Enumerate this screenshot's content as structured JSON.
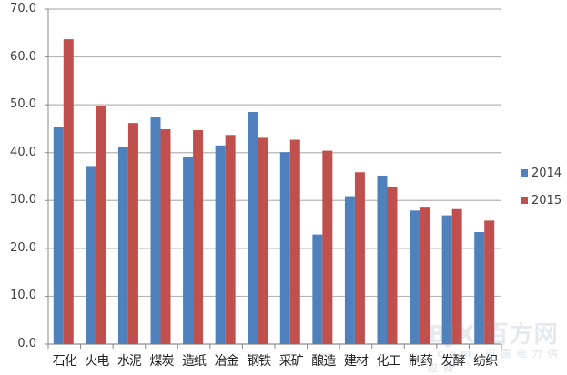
{
  "chart_data": {
    "type": "bar",
    "title": "",
    "xlabel": "",
    "ylabel": "",
    "ylim": [
      0,
      70
    ],
    "yticks": [
      "0.0",
      "10.0",
      "20.0",
      "30.0",
      "40.0",
      "50.0",
      "60.0",
      "70.0"
    ],
    "grid": true,
    "legend_position": "right",
    "categories": [
      "石化",
      "火电",
      "水泥",
      "煤炭",
      "造纸",
      "冶金",
      "钢铁",
      "采矿",
      "酿造",
      "建材",
      "化工",
      "制药",
      "发酵",
      "纺织"
    ],
    "series": [
      {
        "name": "2014",
        "color": "#4F81BD",
        "values": [
          45.3,
          37.2,
          41.1,
          47.4,
          39.0,
          41.5,
          48.5,
          40.1,
          22.9,
          30.9,
          35.2,
          27.9,
          26.9,
          23.4
        ]
      },
      {
        "name": "2015",
        "color": "#C0504D",
        "values": [
          63.7,
          49.8,
          46.2,
          44.9,
          44.7,
          43.7,
          43.1,
          42.7,
          40.4,
          35.9,
          32.8,
          28.7,
          28.2,
          25.8
        ]
      }
    ]
  },
  "legend": {
    "items": [
      {
        "label": "2014"
      },
      {
        "label": "2015"
      }
    ]
  },
  "watermark": {
    "brand": "BJX 百方网",
    "sub": ".com 中国电力供应商"
  }
}
